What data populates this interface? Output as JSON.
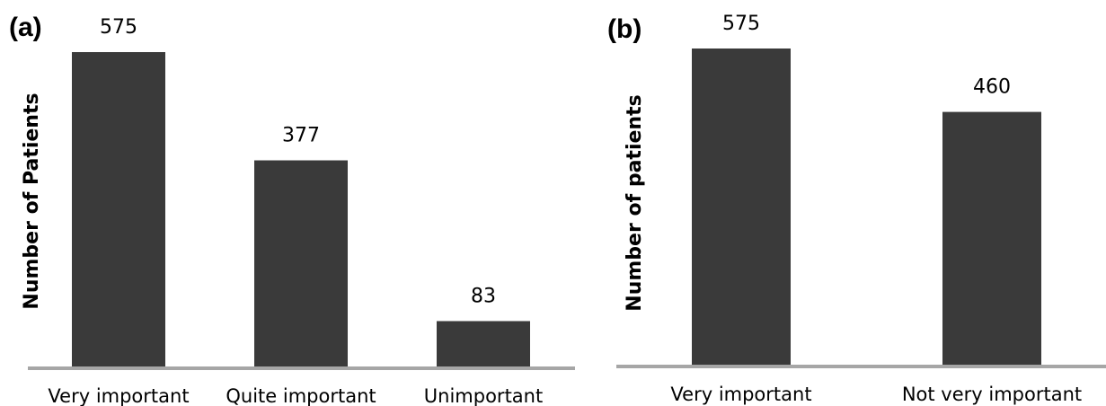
{
  "chart_data": [
    {
      "type": "bar",
      "panel": "(a)",
      "title": "",
      "xlabel": "",
      "ylabel": "Number of Patients",
      "categories": [
        "Very important",
        "Quite important",
        "Unimportant"
      ],
      "values": [
        575,
        377,
        83
      ],
      "ylim": [
        0,
        575
      ],
      "grid": false,
      "legend": "none",
      "colors": {
        "bar": "#3a3a3a",
        "axis": "#a6a6a6"
      }
    },
    {
      "type": "bar",
      "panel": "(b)",
      "title": "",
      "xlabel": "",
      "ylabel": "Number of patients",
      "categories": [
        "Very important",
        "Not very important"
      ],
      "values": [
        575,
        460
      ],
      "ylim": [
        0,
        575
      ],
      "grid": false,
      "legend": "none",
      "colors": {
        "bar": "#3a3a3a",
        "axis": "#a6a6a6"
      }
    }
  ]
}
